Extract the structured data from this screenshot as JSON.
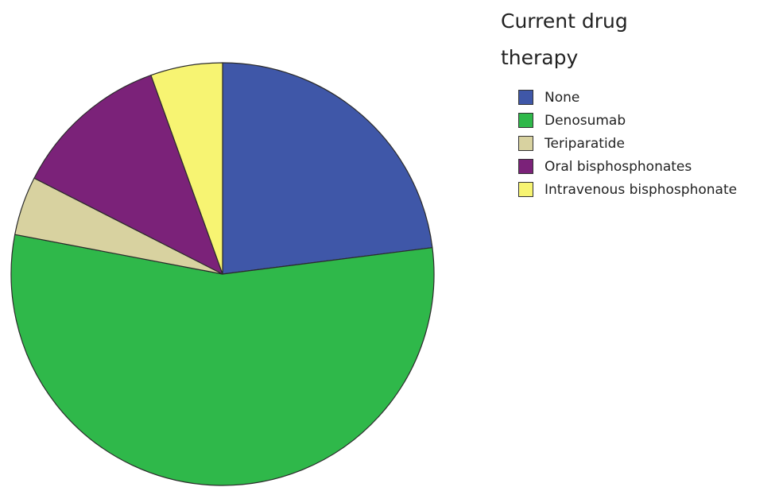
{
  "chart_data": {
    "type": "pie",
    "title": "",
    "legend_title": "Current drug therapy",
    "legend_position": "right",
    "start_angle_deg": 0,
    "direction": "clockwise",
    "slices": [
      {
        "label": "None",
        "value": 23.0,
        "color": "#3f57a8"
      },
      {
        "label": "Denosumab",
        "value": 55.0,
        "color": "#2fb84a"
      },
      {
        "label": "Teriparatide",
        "value": 4.5,
        "color": "#d8d2a0"
      },
      {
        "label": "Oral bisphosphonates",
        "value": 12.0,
        "color": "#7b2279"
      },
      {
        "label": "Intravenous bisphosphonate",
        "value": 5.5,
        "color": "#f7f472"
      }
    ]
  }
}
